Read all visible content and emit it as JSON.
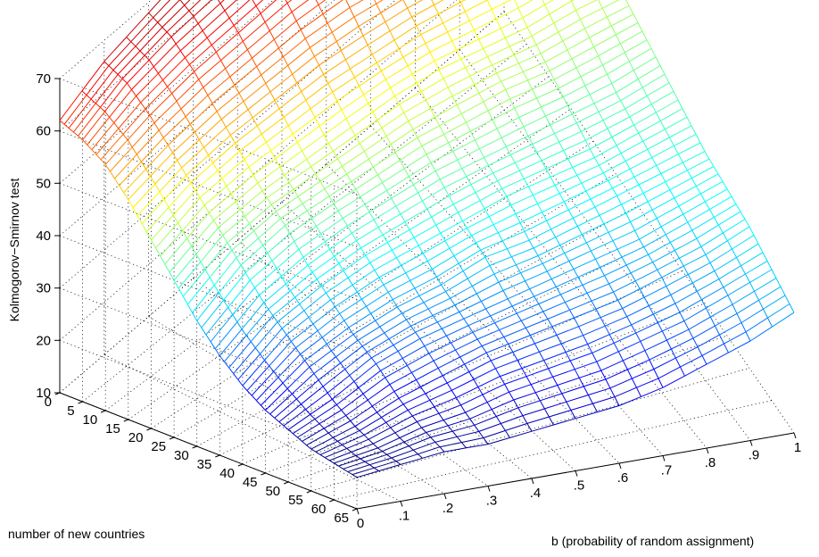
{
  "chart_data": {
    "type": "surface",
    "zlabel": "Kolmogorov−Smirnov test",
    "xlabel": "b (probability of random assignment)",
    "ylabel": "number of new countries",
    "x_ticks": [
      "0",
      ".1",
      ".2",
      ".3",
      ".4",
      ".5",
      ".6",
      ".7",
      ".8",
      ".9",
      "1"
    ],
    "y_ticks": [
      "0",
      "5",
      "10",
      "15",
      "20",
      "25",
      "30",
      "35",
      "40",
      "45",
      "50",
      "55",
      "60",
      "65"
    ],
    "z_ticks": [
      "10",
      "20",
      "30",
      "40",
      "50",
      "60",
      "70"
    ],
    "xlim": [
      0,
      1
    ],
    "ylim": [
      0,
      65
    ],
    "zlim": [
      10,
      70
    ],
    "grid": true,
    "colormap": "jet",
    "b_values": [
      0,
      0.1,
      0.2,
      0.3,
      0.4,
      0.5,
      0.6,
      0.7,
      0.8,
      0.9,
      1.0
    ],
    "n_values": [
      0,
      5,
      10,
      15,
      20,
      25,
      30,
      35,
      40,
      45,
      50,
      55,
      60,
      65
    ],
    "z": [
      [
        62,
        66,
        68,
        70,
        71,
        71,
        70,
        68,
        66,
        64,
        62
      ],
      [
        60,
        64,
        66,
        67,
        68,
        68,
        67,
        66,
        64,
        62,
        60
      ],
      [
        57,
        60,
        62,
        63,
        64,
        64,
        63,
        62,
        60,
        58,
        57
      ],
      [
        52,
        55,
        57,
        58,
        59,
        59,
        58,
        57,
        56,
        54,
        53
      ],
      [
        46,
        50,
        52,
        53,
        54,
        54,
        54,
        53,
        52,
        51,
        50
      ],
      [
        40,
        45,
        47,
        48,
        49,
        50,
        50,
        49,
        48,
        48,
        47
      ],
      [
        34,
        40,
        43,
        44,
        45,
        46,
        46,
        46,
        45,
        45,
        45
      ],
      [
        29,
        35,
        38,
        40,
        41,
        42,
        42,
        42,
        42,
        42,
        43
      ],
      [
        25,
        31,
        34,
        36,
        37,
        38,
        39,
        39,
        39,
        40,
        41
      ],
      [
        22,
        27,
        30,
        32,
        33,
        35,
        35,
        36,
        37,
        38,
        39
      ],
      [
        20,
        23,
        27,
        29,
        30,
        31,
        32,
        33,
        34,
        36,
        38
      ],
      [
        18,
        20,
        23,
        25,
        27,
        28,
        29,
        30,
        32,
        34,
        37
      ],
      [
        17,
        18,
        20,
        21,
        23,
        24,
        25,
        27,
        29,
        32,
        35
      ],
      [
        16,
        17,
        18,
        18,
        19,
        20,
        21,
        23,
        26,
        29,
        33
      ]
    ]
  }
}
